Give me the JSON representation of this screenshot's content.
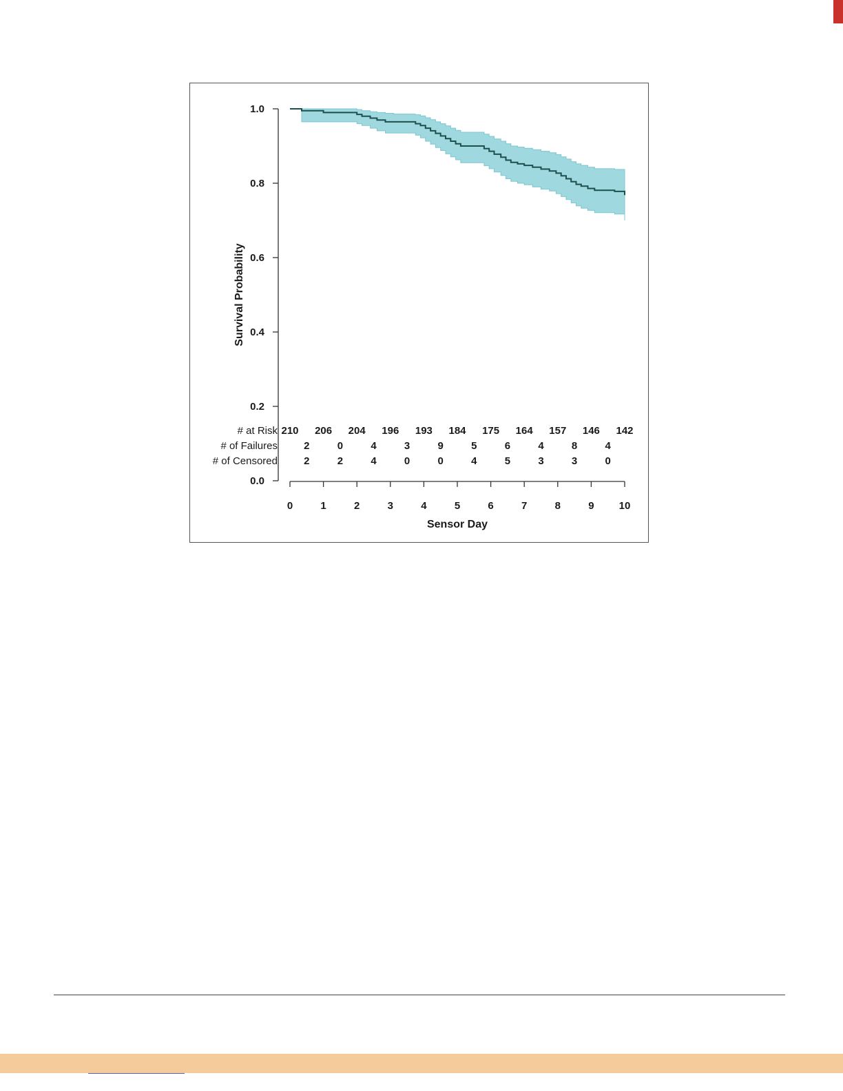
{
  "colors": {
    "band": "#9fd8df",
    "band_stroke": "#7cc7d1",
    "curve": "#1e4f4f",
    "axis": "#333333"
  },
  "chart_data": {
    "type": "line",
    "xlabel": "Sensor Day",
    "ylabel": "Survival Probability",
    "xlim": [
      0,
      10
    ],
    "ylim": [
      0.0,
      1.0
    ],
    "x_ticks": [
      0,
      1,
      2,
      3,
      4,
      5,
      6,
      7,
      8,
      9,
      10
    ],
    "y_ticks": [
      0.0,
      0.2,
      0.4,
      0.6,
      0.8,
      1.0
    ],
    "y_tick_labels": [
      "0.0",
      "0.2",
      "0.4",
      "0.6",
      "0.8",
      "1.0"
    ],
    "grid": false,
    "series": [
      {
        "x": [
          0,
          0.35,
          0.6,
          1.0,
          1.5,
          2.0,
          2.15,
          2.4,
          2.6,
          2.85,
          3.1,
          3.4,
          3.75,
          3.9,
          4.05,
          4.2,
          4.35,
          4.5,
          4.65,
          4.8,
          4.95,
          5.1,
          5.25,
          5.4,
          5.8,
          5.95,
          6.1,
          6.3,
          6.45,
          6.6,
          6.8,
          7.0,
          7.25,
          7.5,
          7.75,
          7.95,
          8.1,
          8.25,
          8.4,
          8.55,
          8.7,
          8.9,
          9.1,
          9.4,
          9.7,
          10.0
        ],
        "y": [
          1.0,
          0.995,
          0.995,
          0.99,
          0.99,
          0.985,
          0.98,
          0.975,
          0.97,
          0.965,
          0.965,
          0.965,
          0.96,
          0.955,
          0.948,
          0.941,
          0.934,
          0.927,
          0.92,
          0.913,
          0.906,
          0.9,
          0.9,
          0.9,
          0.893,
          0.886,
          0.878,
          0.87,
          0.862,
          0.856,
          0.852,
          0.848,
          0.843,
          0.838,
          0.833,
          0.827,
          0.82,
          0.812,
          0.804,
          0.797,
          0.792,
          0.786,
          0.781,
          0.781,
          0.778,
          0.768
        ]
      }
    ],
    "confidence_band": {
      "x": [
        0,
        0.35,
        0.6,
        1.0,
        1.5,
        2.0,
        2.15,
        2.4,
        2.6,
        2.85,
        3.1,
        3.4,
        3.75,
        3.9,
        4.05,
        4.2,
        4.35,
        4.5,
        4.65,
        4.8,
        4.95,
        5.1,
        5.25,
        5.4,
        5.8,
        5.95,
        6.1,
        6.3,
        6.45,
        6.6,
        6.8,
        7.0,
        7.25,
        7.5,
        7.75,
        7.95,
        8.1,
        8.25,
        8.4,
        8.55,
        8.7,
        8.9,
        9.1,
        9.4,
        9.7,
        10.0
      ],
      "upper": [
        1.0,
        1.0,
        1.0,
        1.0,
        1.0,
        0.998,
        0.995,
        0.992,
        0.99,
        0.988,
        0.986,
        0.986,
        0.984,
        0.981,
        0.976,
        0.971,
        0.965,
        0.96,
        0.954,
        0.948,
        0.942,
        0.937,
        0.937,
        0.937,
        0.932,
        0.926,
        0.919,
        0.913,
        0.906,
        0.9,
        0.897,
        0.894,
        0.89,
        0.886,
        0.882,
        0.877,
        0.871,
        0.865,
        0.858,
        0.852,
        0.848,
        0.843,
        0.839,
        0.839,
        0.837,
        0.831
      ],
      "lower": [
        1.0,
        0.965,
        0.965,
        0.965,
        0.965,
        0.96,
        0.955,
        0.948,
        0.941,
        0.935,
        0.935,
        0.935,
        0.929,
        0.922,
        0.913,
        0.905,
        0.896,
        0.888,
        0.879,
        0.871,
        0.863,
        0.855,
        0.855,
        0.855,
        0.847,
        0.839,
        0.83,
        0.821,
        0.812,
        0.805,
        0.8,
        0.796,
        0.79,
        0.784,
        0.779,
        0.772,
        0.764,
        0.756,
        0.747,
        0.739,
        0.733,
        0.727,
        0.721,
        0.721,
        0.717,
        0.7
      ]
    },
    "risk_table": [
      {
        "label": "# at Risk",
        "values": [
          "210",
          "206",
          "204",
          "196",
          "193",
          "184",
          "175",
          "164",
          "157",
          "146",
          "142"
        ],
        "positions": [
          0,
          1,
          2,
          3,
          4,
          5,
          6,
          7,
          8,
          9,
          10
        ]
      },
      {
        "label": "# of Failures",
        "values": [
          "2",
          "0",
          "4",
          "3",
          "9",
          "5",
          "6",
          "4",
          "8",
          "4"
        ],
        "positions": [
          0.5,
          1.5,
          2.5,
          3.5,
          4.5,
          5.5,
          6.5,
          7.5,
          8.5,
          9.5
        ]
      },
      {
        "label": "# of Censored",
        "values": [
          "2",
          "2",
          "4",
          "0",
          "0",
          "4",
          "5",
          "3",
          "3",
          "0"
        ],
        "positions": [
          0.5,
          1.5,
          2.5,
          3.5,
          4.5,
          5.5,
          6.5,
          7.5,
          8.5,
          9.5
        ]
      }
    ]
  }
}
